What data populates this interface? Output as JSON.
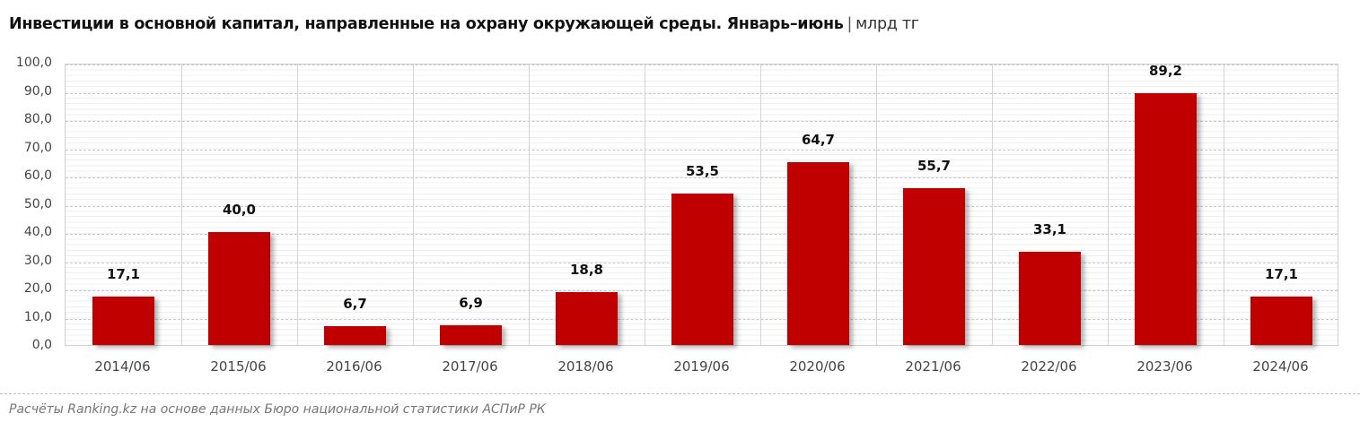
{
  "title": {
    "main": "Инвестиции в основной капитал, направленные на охрану окружающей среды. Январь–июнь",
    "separator": "|",
    "unit": "млрд тг"
  },
  "source": "Расчёты Ranking.kz на основе данных Бюро национальной статистики АСПиР РК",
  "colors": {
    "bar": "#C00000",
    "grid": "#c8c8c8"
  },
  "chart_data": {
    "type": "bar",
    "title": "Инвестиции в основной капитал, направленные на охрану окружающей среды. Январь–июнь | млрд тг",
    "xlabel": "",
    "ylabel": "млрд тг",
    "ylim": [
      0,
      100
    ],
    "yticks": [
      "0,0",
      "10,0",
      "20,0",
      "30,0",
      "40,0",
      "50,0",
      "60,0",
      "70,0",
      "80,0",
      "90,0",
      "100,0"
    ],
    "grid": true,
    "legend": null,
    "categories": [
      "2014/06",
      "2015/06",
      "2016/06",
      "2017/06",
      "2018/06",
      "2019/06",
      "2020/06",
      "2021/06",
      "2022/06",
      "2023/06",
      "2024/06"
    ],
    "values": [
      17.1,
      40.0,
      6.7,
      6.9,
      18.8,
      53.5,
      64.7,
      55.7,
      33.1,
      89.2,
      17.1
    ],
    "labels": [
      "17,1",
      "40,0",
      "6,7",
      "6,9",
      "18,8",
      "53,5",
      "64,7",
      "55,7",
      "33,1",
      "89,2",
      "17,1"
    ]
  }
}
